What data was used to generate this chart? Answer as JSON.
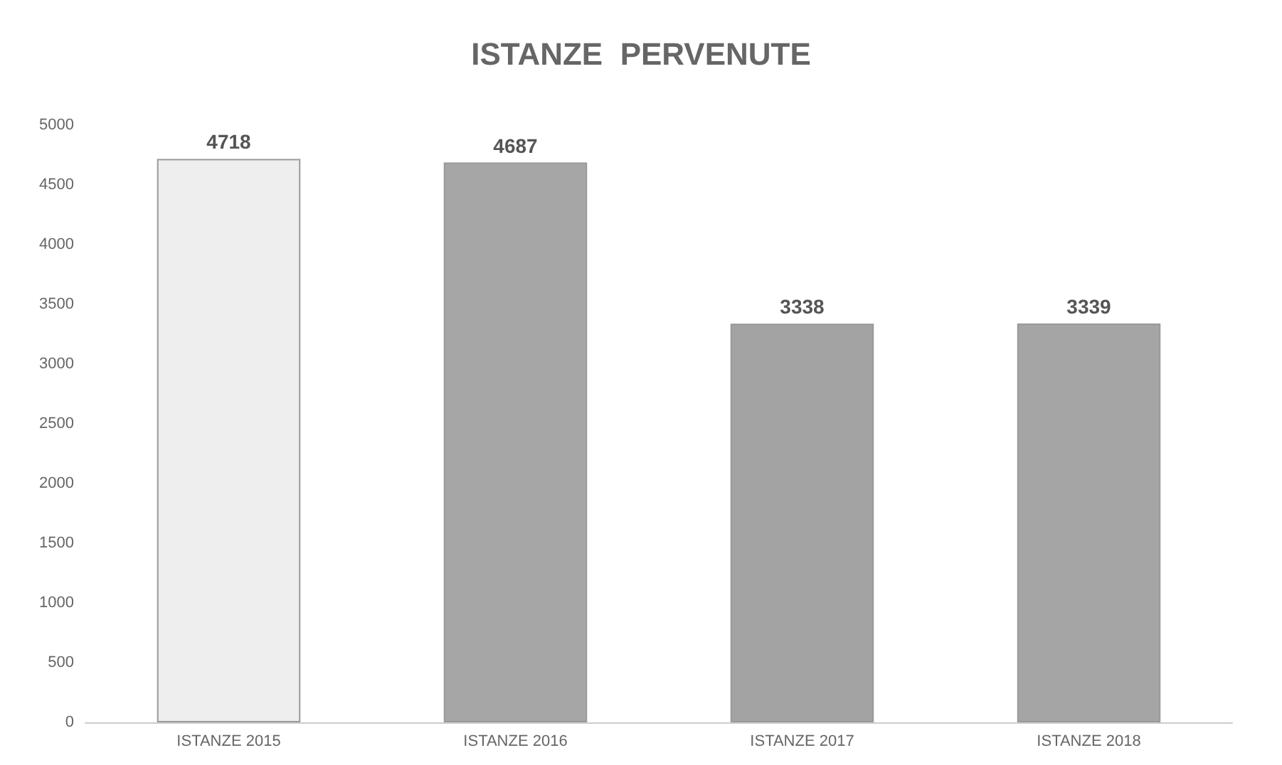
{
  "chart_data": {
    "type": "bar",
    "title": "ISTANZE  PERVENUTE",
    "categories": [
      "ISTANZE 2015",
      "ISTANZE 2016",
      "ISTANZE 2017",
      "ISTANZE 2018"
    ],
    "values": [
      4718,
      4687,
      3338,
      3339
    ],
    "colors": [
      "#eeeeee",
      "#a6a6a6",
      "#a3a3a3",
      "#a5a5a5"
    ],
    "ylim": [
      0,
      5000
    ],
    "yticks": [
      0,
      500,
      1000,
      1500,
      2000,
      2500,
      3000,
      3500,
      4000,
      4500,
      5000
    ],
    "grid": false,
    "data_labels": true
  }
}
